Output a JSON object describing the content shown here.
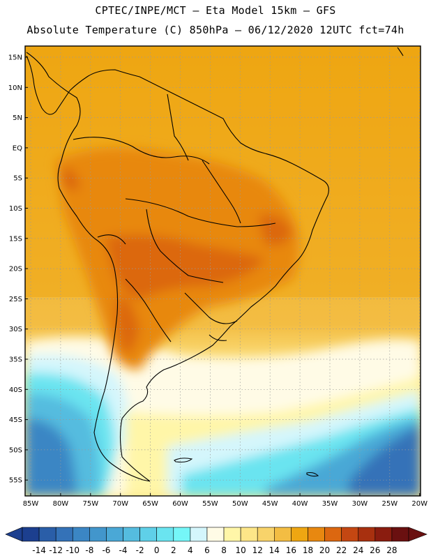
{
  "header": {
    "line1": "CPTEC/INPE/MCT –  Eta Model 15km – GFS",
    "line2": "Absolute Temperature (C) 850hPa – 06/12/2020 12UTC fct=74h"
  },
  "map": {
    "lat_ticks": [
      "15N",
      "10N",
      "5N",
      "EQ",
      "5S",
      "10S",
      "15S",
      "20S",
      "25S",
      "30S",
      "35S",
      "40S",
      "45S",
      "50S",
      "55S"
    ],
    "lon_ticks": [
      "85W",
      "80W",
      "75W",
      "70W",
      "65W",
      "60W",
      "55W",
      "50W",
      "45W",
      "40W",
      "35W",
      "30W",
      "25W",
      "20W"
    ]
  },
  "colorbar": {
    "labels": [
      "-14",
      "-12",
      "-10",
      "-8",
      "-6",
      "-4",
      "-2",
      "0",
      "2",
      "4",
      "6",
      "8",
      "10",
      "12",
      "14",
      "16",
      "18",
      "20",
      "22",
      "24",
      "26",
      "28"
    ],
    "colors": [
      "#1c3f8f",
      "#2a5ea8",
      "#3472b8",
      "#3b86c4",
      "#4296cc",
      "#4aa8d6",
      "#55bcdf",
      "#5fd0e8",
      "#6ae4f0",
      "#75f6f8",
      "#d4f6fc",
      "#fffbe6",
      "#fff6a8",
      "#fde688",
      "#f8d36a",
      "#f3bd43",
      "#eea612",
      "#e88810",
      "#dc6710",
      "#c44712",
      "#a8300f",
      "#8a1c0f",
      "#6a1010"
    ]
  }
}
